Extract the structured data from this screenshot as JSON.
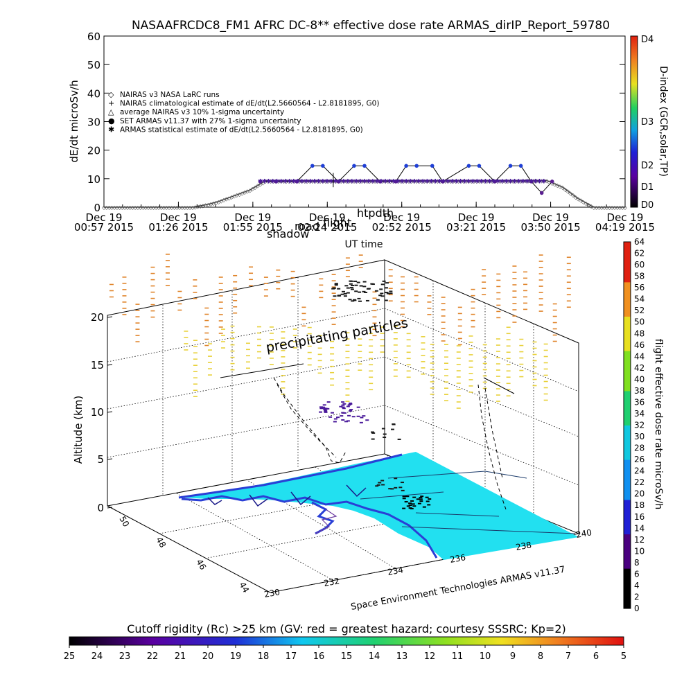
{
  "title": "NASAAFRCDC8_FM1 AFRC DC-8** effective dose rate ARMAS_dirIP_Report_59780",
  "chart_data": [
    {
      "type": "line",
      "ylabel": "dE/dt microSv/h",
      "xlabel": "UT time",
      "ylim": [
        0,
        60
      ],
      "yticks": [
        "0",
        "10",
        "20",
        "30",
        "40",
        "50",
        "60"
      ],
      "xticks": [
        {
          "l1": "Dec 19",
          "l2": "00:57 2015"
        },
        {
          "l1": "Dec 19",
          "l2": "01:26 2015"
        },
        {
          "l1": "Dec 19",
          "l2": "01:55 2015"
        },
        {
          "l1": "Dec 19",
          "l2": "02:24 2015"
        },
        {
          "l1": "Dec 19",
          "l2": "02:52 2015"
        },
        {
          "l1": "Dec 19",
          "l2": "03:21 2015"
        },
        {
          "l1": "Dec 19",
          "l2": "03:50 2015"
        },
        {
          "l1": "Dec 19",
          "l2": "04:19 2015"
        }
      ],
      "legend": [
        {
          "sym": "◇",
          "text": "NAIRAS v3 NASA LaRC runs",
          "color": "#000000"
        },
        {
          "sym": "+",
          "text": "NAIRAS climatological estimate of dE/dt(L2.5660564 - L2.8181895, G0)",
          "color": "#000000"
        },
        {
          "sym": "△",
          "text": "average NAIRAS v3 10% 1-sigma uncertainty",
          "color": "#000000"
        },
        {
          "sym": "●",
          "text": "SET ARMAS v11.37 with 27% 1-sigma uncertainty",
          "color": "#1f3fd6"
        },
        {
          "sym": "✱",
          "text": "ARMAS statistical estimate of dE/dt(L2.5660564 - L2.8181895, G0)",
          "color": "#000000"
        }
      ],
      "overlay_labels": [
        "shadow",
        "htpdth",
        "flight",
        "road"
      ],
      "series": [
        {
          "values_t": [
            0,
            0.17,
            0.2,
            0.22,
            0.25,
            0.28,
            0.31,
            0.85,
            0.88,
            0.91,
            0.94,
            1.0
          ],
          "values": [
            0,
            0,
            1,
            2,
            4,
            6,
            9.2,
            9.3,
            7,
            3,
            0,
            0
          ]
        },
        {
          "armas_t": [
            0.3,
            0.33,
            0.37,
            0.4,
            0.42,
            0.45,
            0.48,
            0.5,
            0.53,
            0.56,
            0.58,
            0.6,
            0.63,
            0.65,
            0.7,
            0.72,
            0.75,
            0.78,
            0.8,
            0.82,
            0.84,
            0.86
          ],
          "armas": [
            9,
            9,
            9,
            14.5,
            14.5,
            9,
            14.5,
            14.5,
            9,
            9,
            14.5,
            14.5,
            14.5,
            9,
            14.5,
            14.5,
            9,
            14.5,
            14.5,
            9,
            5,
            9
          ]
        }
      ],
      "colorbar": {
        "label": "D-index (GCR,solar,TP)",
        "ticks": [
          "D4",
          "D3",
          "D2",
          "D1",
          "D0"
        ]
      }
    },
    {
      "type": "scatter",
      "ylabel": "Altitude (km)",
      "zticks": [
        "0",
        "5",
        "10",
        "15",
        "20"
      ],
      "lon_ticks": [
        "230",
        "232",
        "234",
        "236",
        "238",
        "240"
      ],
      "lat_ticks": [
        "44",
        "46",
        "48",
        "50"
      ],
      "annotation": "precipitating particles",
      "credit": "Space Environment Technologies ARMAS v11.37",
      "colorbar": {
        "label": "flight effective dose rate microSv/h",
        "ticks": [
          "0",
          "2",
          "4",
          "6",
          "8",
          "10",
          "12",
          "14",
          "16",
          "18",
          "20",
          "22",
          "24",
          "26",
          "28",
          "30",
          "32",
          "34",
          "36",
          "38",
          "40",
          "42",
          "44",
          "46",
          "48",
          "50",
          "52",
          "54",
          "56",
          "58",
          "60",
          "62",
          "64"
        ]
      }
    }
  ],
  "bottom_bar": {
    "title": "Cutoff rigidity (Rc) >25 km (GV: red = greatest hazard; courtesy SSSRC; Kp=2)",
    "ticks": [
      "25",
      "24",
      "23",
      "22",
      "21",
      "20",
      "19",
      "18",
      "17",
      "16",
      "15",
      "14",
      "13",
      "12",
      "11",
      "10",
      "9",
      "8",
      "7",
      "6",
      "5"
    ]
  },
  "colors": {
    "armas": "#1f3fd6",
    "map": "#22e0f0",
    "map_coast": "#2a3fd6",
    "upper_flux": "#e0842a",
    "mid_flux": "#e8d13a"
  }
}
